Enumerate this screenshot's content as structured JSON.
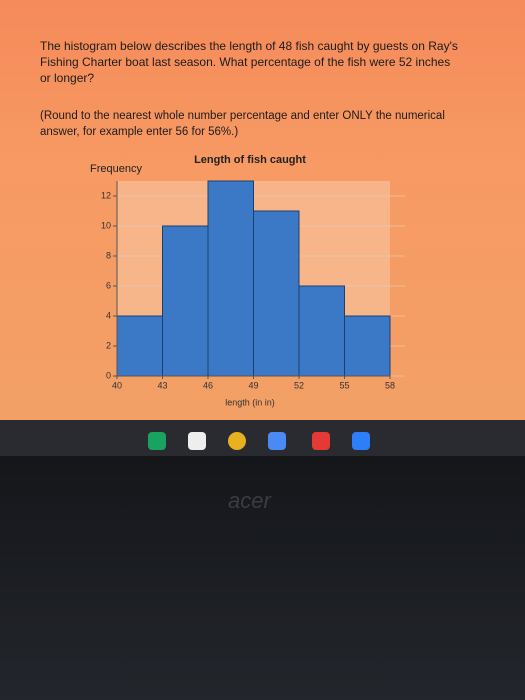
{
  "question": {
    "text": "The histogram below describes the length of 48 fish caught by guests on Ray's Fishing Charter boat last season. What percentage of the fish were 52 inches or longer?",
    "instruction": "(Round to the nearest whole number percentage and enter ONLY the numerical answer, for example enter 56 for 56%.)"
  },
  "chart_data": {
    "type": "histogram",
    "title": "Length of fish caught",
    "y_label": "Frequency",
    "x_label": "length (in in)",
    "bins": [
      40,
      43,
      46,
      49,
      52,
      55,
      58
    ],
    "values": [
      4,
      10,
      13,
      11,
      6,
      4
    ],
    "color": "#3b79c6",
    "xlim": [
      40,
      58
    ],
    "xticks": [
      40,
      43,
      46,
      49,
      52,
      55,
      58
    ],
    "ylim": [
      0,
      13
    ],
    "yticks": [
      0,
      2,
      4,
      6,
      8,
      10,
      12
    ],
    "grid": true
  },
  "device": {
    "brand": "acer"
  }
}
